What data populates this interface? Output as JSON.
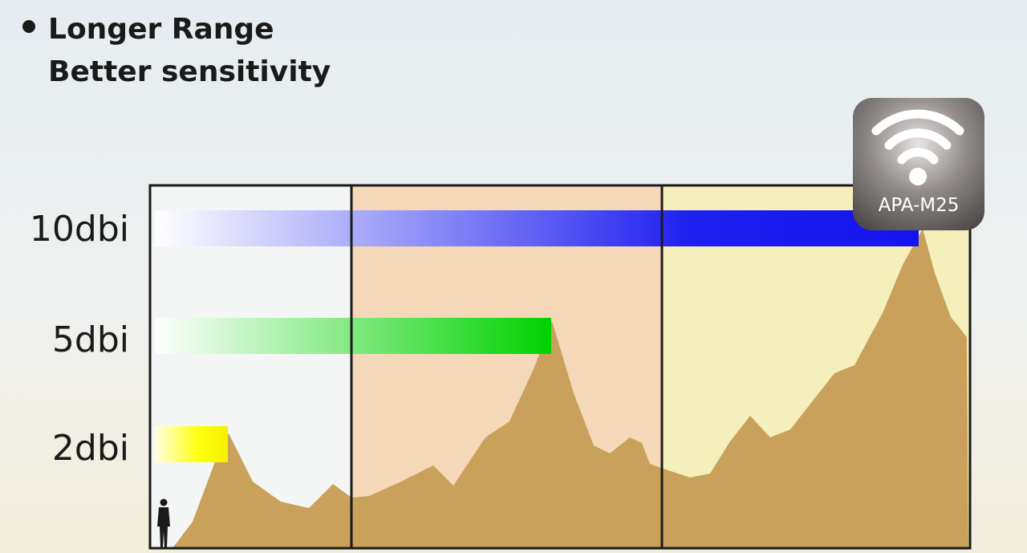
{
  "header": {
    "bullet_title": "Longer Range",
    "subtitle": "Better sensitivity"
  },
  "rows": [
    {
      "label": "10dbi"
    },
    {
      "label": "5dbi"
    },
    {
      "label": "2dbi"
    }
  ],
  "badge": {
    "label": "APA-M25"
  }
}
